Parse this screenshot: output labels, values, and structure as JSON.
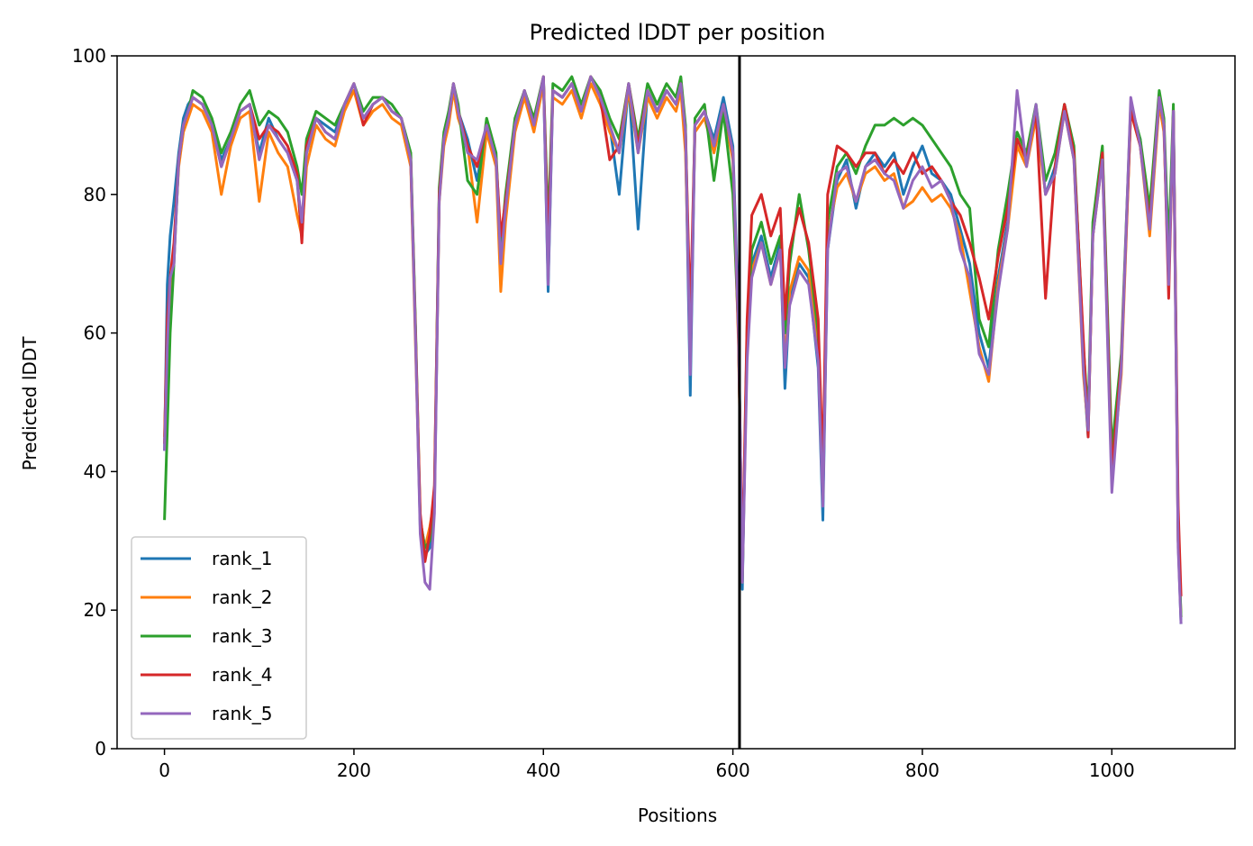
{
  "chart_data": {
    "type": "line",
    "title": "Predicted lDDT per position",
    "xlabel": "Positions",
    "ylabel": "Predicted lDDT",
    "xlim": [
      -50,
      1130
    ],
    "ylim": [
      0,
      100
    ],
    "xticks": [
      0,
      200,
      400,
      600,
      800,
      1000
    ],
    "yticks": [
      0,
      20,
      40,
      60,
      80,
      100
    ],
    "xtick_labels": [
      "0",
      "200",
      "400",
      "600",
      "800",
      "1000"
    ],
    "ytick_labels": [
      "0",
      "20",
      "40",
      "60",
      "80",
      "100"
    ],
    "grid": false,
    "legend_position": "lower-left",
    "chain_break_x": 607,
    "chain_break_color": "#000000",
    "x": [
      0,
      3,
      6,
      10,
      15,
      20,
      25,
      30,
      40,
      50,
      60,
      70,
      80,
      90,
      100,
      110,
      120,
      130,
      140,
      145,
      150,
      160,
      170,
      180,
      190,
      200,
      210,
      220,
      230,
      240,
      250,
      260,
      265,
      270,
      275,
      280,
      285,
      290,
      295,
      300,
      305,
      310,
      320,
      330,
      340,
      350,
      355,
      360,
      370,
      380,
      390,
      400,
      405,
      410,
      420,
      430,
      440,
      450,
      460,
      470,
      480,
      490,
      500,
      510,
      520,
      530,
      540,
      545,
      550,
      555,
      560,
      570,
      580,
      590,
      600,
      606,
      610,
      615,
      620,
      630,
      640,
      650,
      655,
      660,
      670,
      680,
      690,
      695,
      700,
      710,
      720,
      730,
      740,
      750,
      760,
      770,
      780,
      790,
      800,
      810,
      820,
      830,
      840,
      850,
      860,
      870,
      880,
      890,
      900,
      910,
      920,
      930,
      940,
      950,
      960,
      970,
      975,
      980,
      990,
      1000,
      1010,
      1020,
      1030,
      1040,
      1050,
      1055,
      1060,
      1065,
      1070,
      1073
    ],
    "series": [
      {
        "name": "rank_1",
        "color": "#1f77b4",
        "values": [
          43,
          67,
          74,
          79,
          86,
          91,
          93,
          94,
          93,
          90,
          85,
          88,
          92,
          93,
          86,
          91,
          88,
          86,
          82,
          74,
          86,
          91,
          90,
          89,
          93,
          95,
          91,
          93,
          94,
          92,
          91,
          85,
          60,
          32,
          28,
          29,
          35,
          80,
          88,
          91,
          96,
          92,
          88,
          82,
          90,
          85,
          70,
          78,
          90,
          95,
          90,
          97,
          66,
          95,
          94,
          96,
          92,
          97,
          94,
          90,
          80,
          96,
          75,
          95,
          92,
          95,
          93,
          96,
          88,
          51,
          90,
          92,
          88,
          94,
          87,
          62,
          23,
          60,
          70,
          74,
          68,
          73,
          52,
          65,
          70,
          68,
          55,
          33,
          72,
          82,
          85,
          78,
          84,
          86,
          84,
          86,
          80,
          84,
          87,
          83,
          82,
          80,
          75,
          70,
          60,
          55,
          68,
          76,
          88,
          85,
          92,
          80,
          84,
          93,
          86,
          55,
          45,
          75,
          86,
          40,
          55,
          92,
          88,
          75,
          94,
          90,
          70,
          92,
          30,
          18
        ]
      },
      {
        "name": "rank_2",
        "color": "#ff7f0e",
        "values": [
          45,
          60,
          66,
          72,
          84,
          89,
          91,
          93,
          92,
          89,
          80,
          87,
          91,
          92,
          79,
          89,
          86,
          84,
          77,
          74,
          84,
          90,
          88,
          87,
          92,
          95,
          90,
          92,
          93,
          91,
          90,
          84,
          58,
          33,
          29,
          32,
          36,
          79,
          87,
          90,
          95,
          91,
          87,
          76,
          89,
          84,
          66,
          76,
          89,
          94,
          89,
          96,
          74,
          94,
          93,
          95,
          91,
          96,
          93,
          89,
          86,
          95,
          86,
          94,
          91,
          94,
          92,
          95,
          86,
          58,
          89,
          91,
          86,
          92,
          85,
          58,
          25,
          58,
          69,
          73,
          67,
          72,
          56,
          66,
          71,
          69,
          58,
          36,
          74,
          81,
          83,
          79,
          83,
          84,
          82,
          83,
          78,
          79,
          81,
          79,
          80,
          78,
          74,
          66,
          58,
          53,
          67,
          75,
          87,
          84,
          91,
          80,
          83,
          92,
          85,
          54,
          46,
          74,
          85,
          39,
          54,
          92,
          87,
          74,
          93,
          89,
          68,
          91,
          30,
          19
        ]
      },
      {
        "name": "rank_3",
        "color": "#2ca02c",
        "values": [
          33,
          46,
          60,
          70,
          85,
          90,
          92,
          95,
          94,
          91,
          86,
          89,
          93,
          95,
          90,
          92,
          91,
          89,
          84,
          80,
          88,
          92,
          91,
          90,
          93,
          96,
          92,
          94,
          94,
          93,
          91,
          86,
          61,
          33,
          29,
          30,
          37,
          81,
          89,
          92,
          96,
          93,
          82,
          80,
          91,
          86,
          72,
          80,
          91,
          95,
          91,
          97,
          75,
          96,
          95,
          97,
          93,
          97,
          95,
          91,
          88,
          96,
          88,
          96,
          93,
          96,
          94,
          97,
          90,
          57,
          91,
          93,
          82,
          92,
          80,
          60,
          24,
          61,
          72,
          76,
          70,
          74,
          60,
          70,
          80,
          72,
          60,
          37,
          76,
          84,
          86,
          83,
          87,
          90,
          90,
          91,
          90,
          91,
          90,
          88,
          86,
          84,
          80,
          78,
          62,
          58,
          72,
          80,
          89,
          86,
          93,
          82,
          86,
          93,
          87,
          58,
          48,
          76,
          87,
          43,
          57,
          93,
          88,
          78,
          95,
          91,
          72,
          93,
          32,
          19
        ]
      },
      {
        "name": "rank_4",
        "color": "#d62728",
        "values": [
          44,
          62,
          68,
          73,
          85,
          90,
          92,
          94,
          93,
          90,
          84,
          88,
          92,
          93,
          88,
          90,
          89,
          87,
          83,
          73,
          87,
          91,
          89,
          88,
          93,
          96,
          90,
          93,
          94,
          92,
          91,
          85,
          60,
          34,
          27,
          31,
          38,
          80,
          88,
          91,
          96,
          92,
          87,
          84,
          90,
          85,
          74,
          79,
          90,
          95,
          90,
          97,
          72,
          95,
          94,
          96,
          92,
          97,
          94,
          85,
          87,
          96,
          87,
          95,
          92,
          95,
          93,
          96,
          89,
          62,
          90,
          92,
          87,
          93,
          86,
          59,
          26,
          62,
          77,
          80,
          74,
          78,
          62,
          72,
          78,
          73,
          62,
          40,
          80,
          87,
          86,
          84,
          86,
          86,
          83,
          85,
          83,
          86,
          83,
          84,
          82,
          79,
          77,
          73,
          68,
          62,
          71,
          78,
          88,
          85,
          92,
          65,
          84,
          93,
          86,
          59,
          45,
          74,
          86,
          40,
          56,
          92,
          87,
          76,
          94,
          90,
          65,
          92,
          35,
          22
        ]
      },
      {
        "name": "rank_5",
        "color": "#9467bd",
        "values": [
          43,
          58,
          68,
          70,
          85,
          90,
          92,
          94,
          93,
          90,
          84,
          88,
          92,
          93,
          85,
          90,
          88,
          86,
          82,
          76,
          86,
          91,
          89,
          88,
          93,
          96,
          91,
          93,
          94,
          92,
          91,
          85,
          59,
          31,
          24,
          23,
          34,
          79,
          88,
          91,
          96,
          92,
          86,
          85,
          90,
          85,
          70,
          78,
          90,
          95,
          90,
          97,
          67,
          95,
          94,
          96,
          92,
          97,
          94,
          90,
          86,
          96,
          86,
          95,
          92,
          95,
          93,
          96,
          89,
          54,
          90,
          92,
          87,
          93,
          86,
          60,
          24,
          56,
          68,
          73,
          67,
          72,
          55,
          64,
          69,
          67,
          56,
          35,
          72,
          83,
          84,
          79,
          84,
          85,
          83,
          82,
          78,
          82,
          84,
          81,
          82,
          79,
          72,
          68,
          57,
          54,
          66,
          75,
          95,
          84,
          93,
          80,
          83,
          92,
          85,
          55,
          46,
          74,
          85,
          37,
          55,
          94,
          87,
          75,
          94,
          90,
          67,
          92,
          29,
          18
        ]
      }
    ]
  }
}
